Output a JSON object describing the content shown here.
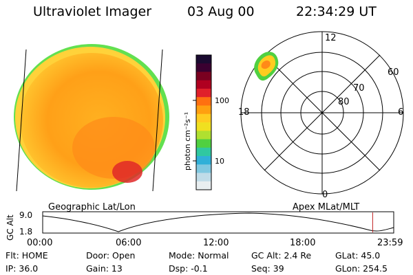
{
  "header": {
    "instrument": "Ultraviolet Imager",
    "date": "03 Aug 00",
    "time": "22:34:29 UT"
  },
  "colorbar": {
    "label": "photon cm⁻²s⁻¹",
    "ticks": [
      "100",
      "10"
    ],
    "colors": [
      "#1a0a30",
      "#3a0030",
      "#7a0020",
      "#b00020",
      "#e0202a",
      "#ff7010",
      "#ffa010",
      "#ffcc20",
      "#f0e020",
      "#b0e030",
      "#50d040",
      "#30c8a0",
      "#30b0d8",
      "#80c8e0",
      "#c0dce8",
      "#e8eef0"
    ]
  },
  "polar_plot": {
    "lat_labels": [
      "60",
      "70",
      "80"
    ],
    "mlt_labels": {
      "top": "12",
      "left": "18",
      "right": "6",
      "bottom": "0"
    }
  },
  "timeline": {
    "y_label": "GC Alt",
    "y_ticks": [
      "9.0",
      "1.8"
    ],
    "left_title": "Geographic Lat/Lon",
    "right_title": "Apex MLat/MLT",
    "x_ticks": [
      "00:00",
      "06:00",
      "12:00",
      "18:00",
      "23:59"
    ],
    "current_marker_fraction": 0.94
  },
  "status": {
    "flt": "Flt: HOME",
    "door": "Door: Open",
    "mode": "Mode: Normal",
    "gc_alt": "GC Alt: 2.4 Re",
    "glat": "GLat:  45.0",
    "ip": "IP: 36.0",
    "gain": "Gain: 13",
    "dsp": "Dsp:   -0.1",
    "seq": "Seq: 39",
    "glon": "GLon: 254.5"
  }
}
